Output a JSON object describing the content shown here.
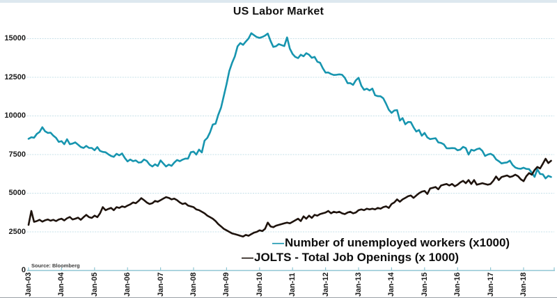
{
  "title": "US Labor Market",
  "source_note": "Source: Bloomberg",
  "colors": {
    "unemployed_line": "#1795af",
    "jolts_line": "#1e130d",
    "grid": "#c5e0e8",
    "axis": "#8fc6d3",
    "text": "#121212"
  },
  "legend": [
    {
      "label": "Number of unemployed workers (x1000)",
      "color": "#1795af"
    },
    {
      "label": "JOLTS - Total Job Openings (x 1000)",
      "color": "#1e130d"
    }
  ],
  "chart_data": {
    "type": "line",
    "title": "US Labor Market",
    "xlabel": "",
    "ylabel": "",
    "grid": "horizontal",
    "legend_position": "inside-bottom-right",
    "x_unit": "month",
    "x_start": "Jan-03",
    "x_end": "Nov-18",
    "ylim": [
      0,
      15500
    ],
    "yticks": [
      0,
      2500,
      5000,
      7500,
      10000,
      12500,
      15000
    ],
    "ytick_labels": [
      "0",
      "2500",
      "5000",
      "7500",
      "10000",
      "12500",
      "15000"
    ],
    "xtick_labels": [
      "Jan-03",
      "Jan-04",
      "Jan-05",
      "Jan-06",
      "Jan-07",
      "Jan-08",
      "Jan-09",
      "Jan-10",
      "Jan-11",
      "Jan-12",
      "Jan-13",
      "Jan-14",
      "Jan-15",
      "Jan-16",
      "Jan-17",
      "Jan-18"
    ],
    "series": [
      {
        "name": "Number of unemployed workers (x1000)",
        "color": "#1795af",
        "values": [
          8520,
          8620,
          8590,
          8840,
          8960,
          9270,
          9010,
          8900,
          8920,
          8730,
          8580,
          8320,
          8370,
          8170,
          8490,
          8170,
          8210,
          8290,
          8140,
          7990,
          7930,
          8060,
          7930,
          7930,
          7780,
          7980,
          7740,
          7670,
          7650,
          7520,
          7410,
          7350,
          7550,
          7450,
          7570,
          7280,
          7060,
          7180,
          7070,
          7120,
          6980,
          7000,
          7180,
          7090,
          6850,
          6730,
          6870,
          6760,
          7120,
          6930,
          6730,
          6850,
          6770,
          6980,
          7150,
          7070,
          7170,
          7240,
          7240,
          7650,
          7690,
          7500,
          7820,
          7640,
          8400,
          8580,
          8940,
          9440,
          9490,
          10070,
          10540,
          11290,
          12060,
          12900,
          13430,
          13850,
          14500,
          14710,
          14600,
          14810,
          15010,
          15350,
          15220,
          15100,
          15050,
          15110,
          15200,
          15330,
          14850,
          14470,
          14510,
          14650,
          14580,
          14520,
          15080,
          14350,
          14010,
          13820,
          13740,
          13960,
          13860,
          14060,
          13960,
          13760,
          13820,
          13510,
          13440,
          13090,
          12800,
          12810,
          12710,
          12650,
          12660,
          12690,
          12660,
          12470,
          12120,
          12120,
          12010,
          12300,
          12470,
          11950,
          11690,
          11760,
          11650,
          11770,
          11340,
          11280,
          11270,
          11140,
          10790,
          10400,
          10200,
          10350,
          10380,
          9700,
          9860,
          9460,
          9610,
          9600,
          9260,
          8990,
          9090,
          8720,
          8900,
          8610,
          8500,
          8530,
          8560,
          8290,
          8250,
          8160,
          7910,
          7900,
          7920,
          7910,
          7780,
          7820,
          8000,
          7920,
          7500,
          7810,
          7750,
          7850,
          7900,
          7740,
          7410,
          7500,
          7550,
          7450,
          7190,
          7070,
          6930,
          6970,
          6990,
          7110,
          6830,
          6660,
          6600,
          6580,
          6650,
          6570,
          6560,
          6330,
          6060,
          6550,
          6250,
          6220,
          5960,
          6120,
          6050
        ]
      },
      {
        "name": "JOLTS - Total Job Openings (x 1000)",
        "color": "#1e130d",
        "values": [
          2950,
          3850,
          3150,
          3200,
          3280,
          3160,
          3250,
          3300,
          3220,
          3280,
          3200,
          3300,
          3350,
          3240,
          3380,
          3460,
          3300,
          3350,
          3420,
          3280,
          3450,
          3600,
          3450,
          3400,
          3550,
          3450,
          3700,
          4100,
          3900,
          3980,
          4050,
          3900,
          4100,
          4050,
          4150,
          4100,
          4200,
          4280,
          4400,
          4350,
          4500,
          4680,
          4550,
          4400,
          4300,
          4350,
          4500,
          4450,
          4550,
          4650,
          4750,
          4700,
          4600,
          4650,
          4550,
          4400,
          4300,
          4350,
          4200,
          4150,
          4100,
          3950,
          3900,
          3800,
          3700,
          3550,
          3450,
          3350,
          3200,
          3000,
          2850,
          2700,
          2600,
          2500,
          2400,
          2350,
          2300,
          2250,
          2200,
          2300,
          2250,
          2350,
          2450,
          2500,
          2600,
          2550,
          2700,
          3100,
          2850,
          2800,
          2900,
          2950,
          3000,
          3050,
          3100,
          3050,
          3150,
          3250,
          3350,
          3200,
          3500,
          3350,
          3550,
          3400,
          3600,
          3550,
          3650,
          3700,
          3750,
          3850,
          3700,
          3800,
          3750,
          3800,
          3700,
          3650,
          3750,
          3800,
          3700,
          3750,
          3900,
          3950,
          3900,
          4000,
          3950,
          4000,
          3950,
          4050,
          4000,
          4100,
          4150,
          4050,
          4300,
          4400,
          4600,
          4450,
          4600,
          4700,
          4800,
          4850,
          4700,
          4850,
          5000,
          5100,
          5150,
          4950,
          5300,
          5350,
          5400,
          5250,
          5500,
          5550,
          5600,
          5500,
          5600,
          5450,
          5550,
          5700,
          5800,
          5650,
          5850,
          5600,
          5850,
          5550,
          5600,
          5650,
          5600,
          5550,
          5600,
          5800,
          6080,
          5850,
          6050,
          6100,
          6150,
          6050,
          6100,
          6200,
          6100,
          5900,
          5780,
          6100,
          6300,
          6200,
          6500,
          6700,
          6600,
          6900,
          7230,
          6950,
          7100
        ]
      }
    ]
  }
}
